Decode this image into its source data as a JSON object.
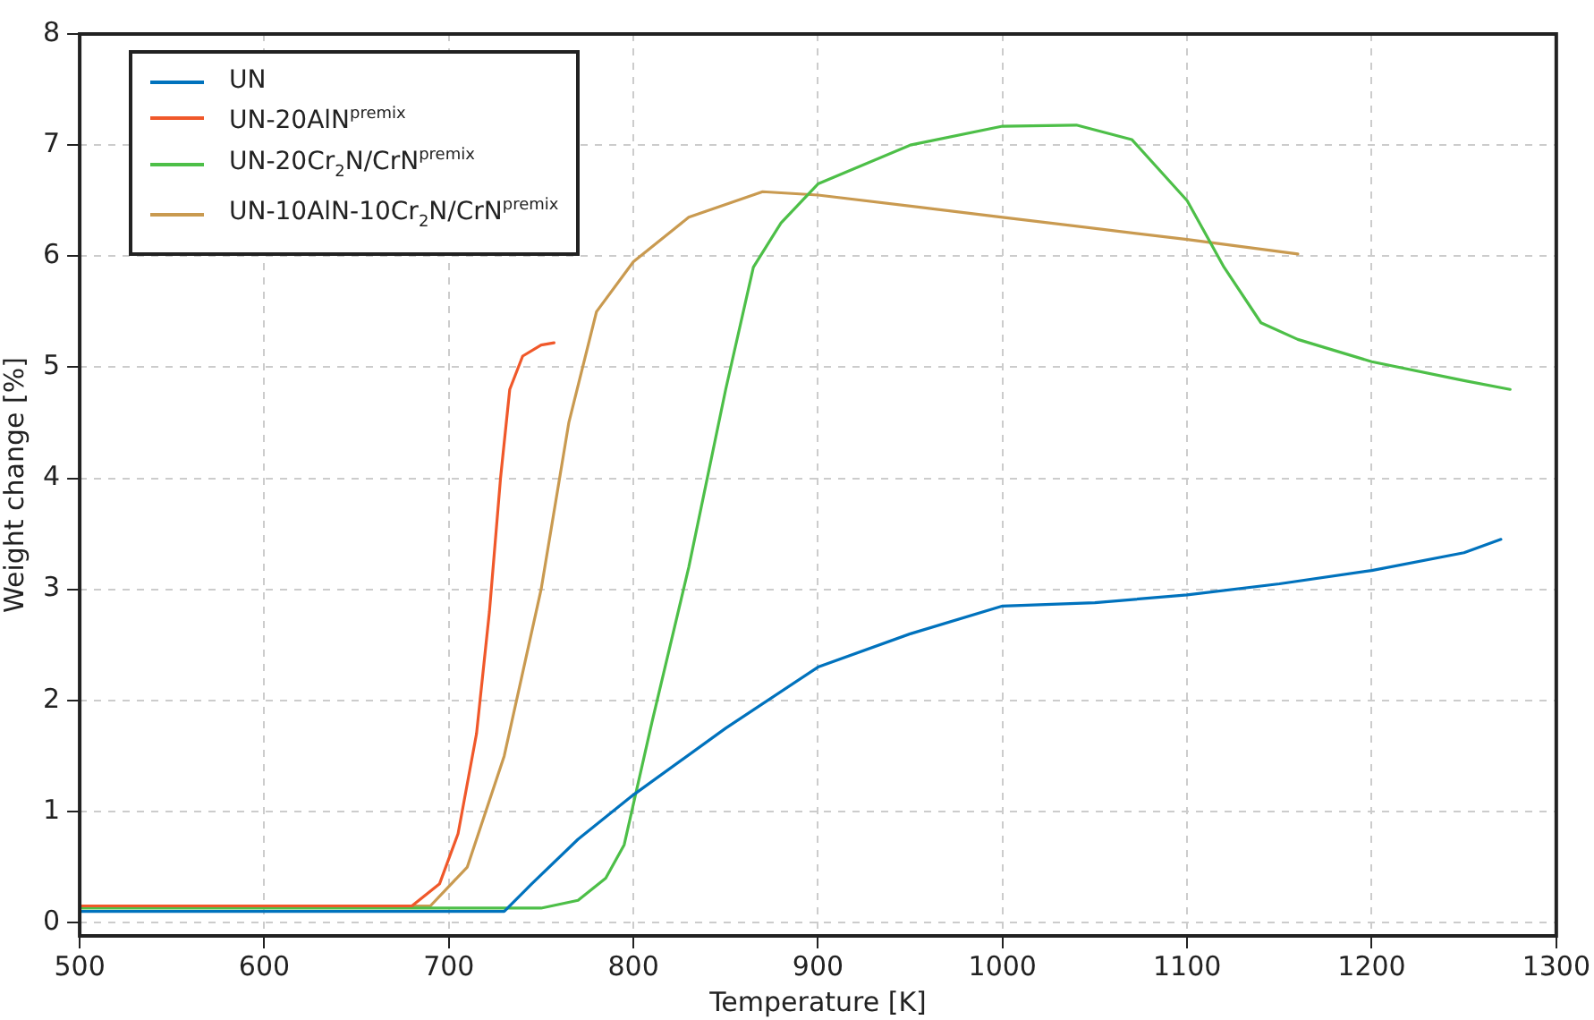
{
  "chart_data": {
    "type": "line",
    "xlabel": "Temperature [K]",
    "ylabel": "Weight change [%]",
    "xlim": [
      500,
      1300
    ],
    "xticks": [
      500,
      600,
      700,
      800,
      900,
      1000,
      1100,
      1200,
      1300
    ],
    "ylim": [
      -0.12,
      8
    ],
    "yticks": [
      0,
      1,
      2,
      3,
      4,
      5,
      6,
      7,
      8
    ],
    "grid": true,
    "legend": "top left",
    "line_style": "solid",
    "marker": "none",
    "series": [
      {
        "name": "UN",
        "color": "#0072bd",
        "x": [
          500,
          600,
          700,
          730,
          745,
          770,
          800,
          850,
          900,
          950,
          1000,
          1050,
          1100,
          1150,
          1200,
          1250,
          1270
        ],
        "values": [
          0.1,
          0.1,
          0.1,
          0.1,
          0.35,
          0.75,
          1.15,
          1.75,
          2.3,
          2.6,
          2.85,
          2.88,
          2.95,
          3.05,
          3.17,
          3.33,
          3.45
        ]
      },
      {
        "name": "UN-20AlN$^{premix}$",
        "color": "#f0582a",
        "x": [
          500,
          600,
          680,
          695,
          705,
          715,
          722,
          728,
          733,
          740,
          750,
          757
        ],
        "values": [
          0.15,
          0.15,
          0.15,
          0.35,
          0.8,
          1.7,
          2.8,
          4.0,
          4.8,
          5.1,
          5.2,
          5.22
        ]
      },
      {
        "name": "UN-20Cr$_{2}$N/CrN$^{premix}$",
        "color": "#4dbf48",
        "x": [
          500,
          600,
          700,
          750,
          770,
          785,
          795,
          810,
          830,
          850,
          865,
          880,
          900,
          950,
          1000,
          1040,
          1070,
          1100,
          1120,
          1140,
          1160,
          1200,
          1250,
          1275
        ],
        "values": [
          0.13,
          0.13,
          0.13,
          0.13,
          0.2,
          0.4,
          0.7,
          1.8,
          3.2,
          4.8,
          5.9,
          6.3,
          6.65,
          7.0,
          7.17,
          7.18,
          7.05,
          6.5,
          5.9,
          5.4,
          5.25,
          5.05,
          4.88,
          4.8
        ]
      },
      {
        "name": "UN-10AlN-10Cr$_{2}$N/CrN$^{premix}$",
        "color": "#c99a50",
        "x": [
          500,
          600,
          690,
          710,
          730,
          750,
          765,
          780,
          800,
          830,
          870,
          900,
          1000,
          1100,
          1160
        ],
        "values": [
          0.15,
          0.15,
          0.15,
          0.5,
          1.5,
          3.0,
          4.5,
          5.5,
          5.95,
          6.35,
          6.58,
          6.55,
          6.35,
          6.15,
          6.02
        ]
      }
    ]
  }
}
